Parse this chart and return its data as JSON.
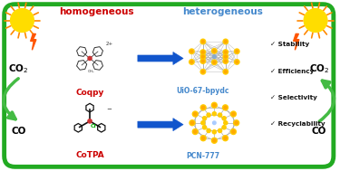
{
  "bg_color": "#ffffff",
  "border_color": "#22aa22",
  "border_linewidth": 3.5,
  "homogeneous_label": "homogeneous",
  "heterogeneous_label": "heterogeneous",
  "homogeneous_color": "#cc0000",
  "heterogeneous_color": "#4488cc",
  "coqpy_label": "Coqpy",
  "cotpa_label": "CoTPA",
  "uio_label": "UiO-67-bpydc",
  "pcn_label": "PCN-777",
  "catalyst_label_color": "#cc0000",
  "mof_label_color": "#4488cc",
  "checkmarks": [
    "✓ Stability",
    "✓ Efficiency",
    "✓ Selectivity",
    "✓ Recyclability"
  ],
  "checkmark_color": "#111111",
  "green_arrow_color": "#44bb44",
  "sun_color": "#ffdd00",
  "sun_ray_color": "#ff8800",
  "lightning_color": "#ff5500",
  "blue_arrow_color": "#1155cc"
}
